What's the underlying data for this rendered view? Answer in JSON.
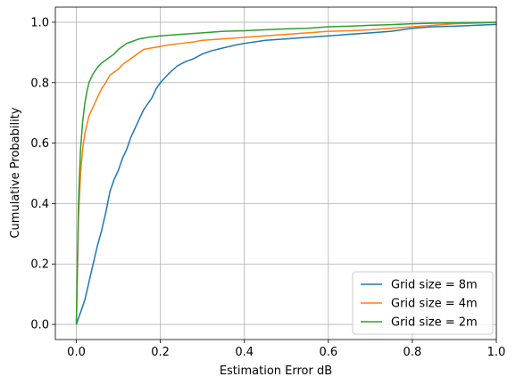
{
  "chart_data": {
    "type": "line",
    "title": "",
    "xlabel": "Estimation Error dB",
    "ylabel": "Cumulative Probability",
    "xlim": [
      -0.05,
      1.0
    ],
    "ylim": [
      -0.05,
      1.05
    ],
    "xticks": [
      0.0,
      0.2,
      0.4,
      0.6,
      0.8,
      1.0
    ],
    "xtick_labels": [
      "0.0",
      "0.2",
      "0.4",
      "0.6",
      "0.8",
      "1.0"
    ],
    "yticks": [
      0.0,
      0.2,
      0.4,
      0.6,
      0.8,
      1.0
    ],
    "ytick_labels": [
      "0.0",
      "0.2",
      "0.4",
      "0.6",
      "0.8",
      "1.0"
    ],
    "grid": true,
    "legend_position": "lower-right",
    "series": [
      {
        "name": "Grid size = 8m",
        "color": "#1f77b4",
        "x": [
          0.0,
          0.01,
          0.02,
          0.03,
          0.04,
          0.05,
          0.06,
          0.07,
          0.08,
          0.09,
          0.1,
          0.11,
          0.12,
          0.13,
          0.14,
          0.15,
          0.16,
          0.17,
          0.18,
          0.19,
          0.2,
          0.22,
          0.24,
          0.26,
          0.28,
          0.3,
          0.32,
          0.35,
          0.38,
          0.4,
          0.45,
          0.5,
          0.55,
          0.6,
          0.65,
          0.7,
          0.75,
          0.8,
          0.85,
          0.9,
          0.95,
          1.0
        ],
        "y": [
          0.0,
          0.04,
          0.08,
          0.14,
          0.2,
          0.26,
          0.31,
          0.37,
          0.44,
          0.48,
          0.51,
          0.55,
          0.58,
          0.62,
          0.65,
          0.68,
          0.71,
          0.73,
          0.75,
          0.78,
          0.8,
          0.83,
          0.855,
          0.87,
          0.88,
          0.895,
          0.905,
          0.915,
          0.925,
          0.93,
          0.94,
          0.945,
          0.95,
          0.955,
          0.96,
          0.965,
          0.97,
          0.98,
          0.985,
          0.987,
          0.99,
          0.993
        ]
      },
      {
        "name": "Grid size = 4m",
        "color": "#ff7f0e",
        "x": [
          0.0,
          0.005,
          0.01,
          0.015,
          0.02,
          0.03,
          0.04,
          0.05,
          0.06,
          0.07,
          0.08,
          0.09,
          0.1,
          0.11,
          0.12,
          0.13,
          0.14,
          0.15,
          0.16,
          0.18,
          0.2,
          0.22,
          0.25,
          0.28,
          0.3,
          0.35,
          0.4,
          0.45,
          0.5,
          0.55,
          0.6,
          0.65,
          0.7,
          0.75,
          0.8,
          0.85,
          0.9,
          0.95,
          1.0
        ],
        "y": [
          0.0,
          0.35,
          0.5,
          0.58,
          0.63,
          0.69,
          0.72,
          0.75,
          0.78,
          0.8,
          0.825,
          0.835,
          0.845,
          0.86,
          0.87,
          0.88,
          0.89,
          0.9,
          0.91,
          0.915,
          0.92,
          0.925,
          0.93,
          0.935,
          0.94,
          0.945,
          0.95,
          0.955,
          0.96,
          0.965,
          0.97,
          0.972,
          0.975,
          0.98,
          0.985,
          0.99,
          0.995,
          0.997,
          0.999
        ]
      },
      {
        "name": "Grid size = 2m",
        "color": "#2ca02c",
        "x": [
          0.0,
          0.005,
          0.01,
          0.015,
          0.02,
          0.025,
          0.03,
          0.04,
          0.05,
          0.06,
          0.07,
          0.08,
          0.09,
          0.1,
          0.11,
          0.12,
          0.13,
          0.15,
          0.17,
          0.2,
          0.25,
          0.3,
          0.35,
          0.4,
          0.45,
          0.5,
          0.55,
          0.6,
          0.65,
          0.7,
          0.75,
          0.8,
          0.85,
          0.9,
          0.95,
          1.0
        ],
        "y": [
          0.0,
          0.4,
          0.58,
          0.67,
          0.73,
          0.77,
          0.8,
          0.83,
          0.85,
          0.865,
          0.875,
          0.885,
          0.895,
          0.91,
          0.92,
          0.93,
          0.935,
          0.945,
          0.95,
          0.955,
          0.96,
          0.965,
          0.97,
          0.972,
          0.975,
          0.978,
          0.98,
          0.985,
          0.987,
          0.99,
          0.992,
          0.995,
          0.997,
          0.998,
          0.999,
          1.0
        ]
      }
    ]
  }
}
